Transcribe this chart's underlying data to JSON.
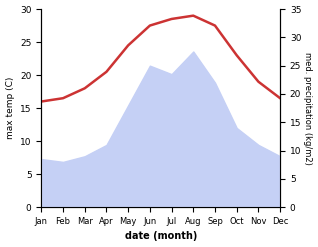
{
  "months": [
    "Jan",
    "Feb",
    "Mar",
    "Apr",
    "May",
    "Jun",
    "Jul",
    "Aug",
    "Sep",
    "Oct",
    "Nov",
    "Dec"
  ],
  "max_temp": [
    16.0,
    16.5,
    18.0,
    20.5,
    24.5,
    27.5,
    28.5,
    29.0,
    27.5,
    23.0,
    19.0,
    16.5
  ],
  "precipitation": [
    8.5,
    8.0,
    9.0,
    11.0,
    18.0,
    25.0,
    23.5,
    27.5,
    22.0,
    14.0,
    11.0,
    9.0
  ],
  "temp_color": "#cc3333",
  "precip_fill_color": "#c5d0f5",
  "temp_ylim": [
    0,
    30
  ],
  "precip_ylim": [
    0,
    35
  ],
  "temp_yticks": [
    0,
    5,
    10,
    15,
    20,
    25,
    30
  ],
  "precip_yticks": [
    0,
    5,
    10,
    15,
    20,
    25,
    30,
    35
  ],
  "ylabel_left": "max temp (C)",
  "ylabel_right": "med. precipitation (kg/m2)",
  "xlabel": "date (month)",
  "background_color": "#ffffff",
  "line_width": 1.8
}
